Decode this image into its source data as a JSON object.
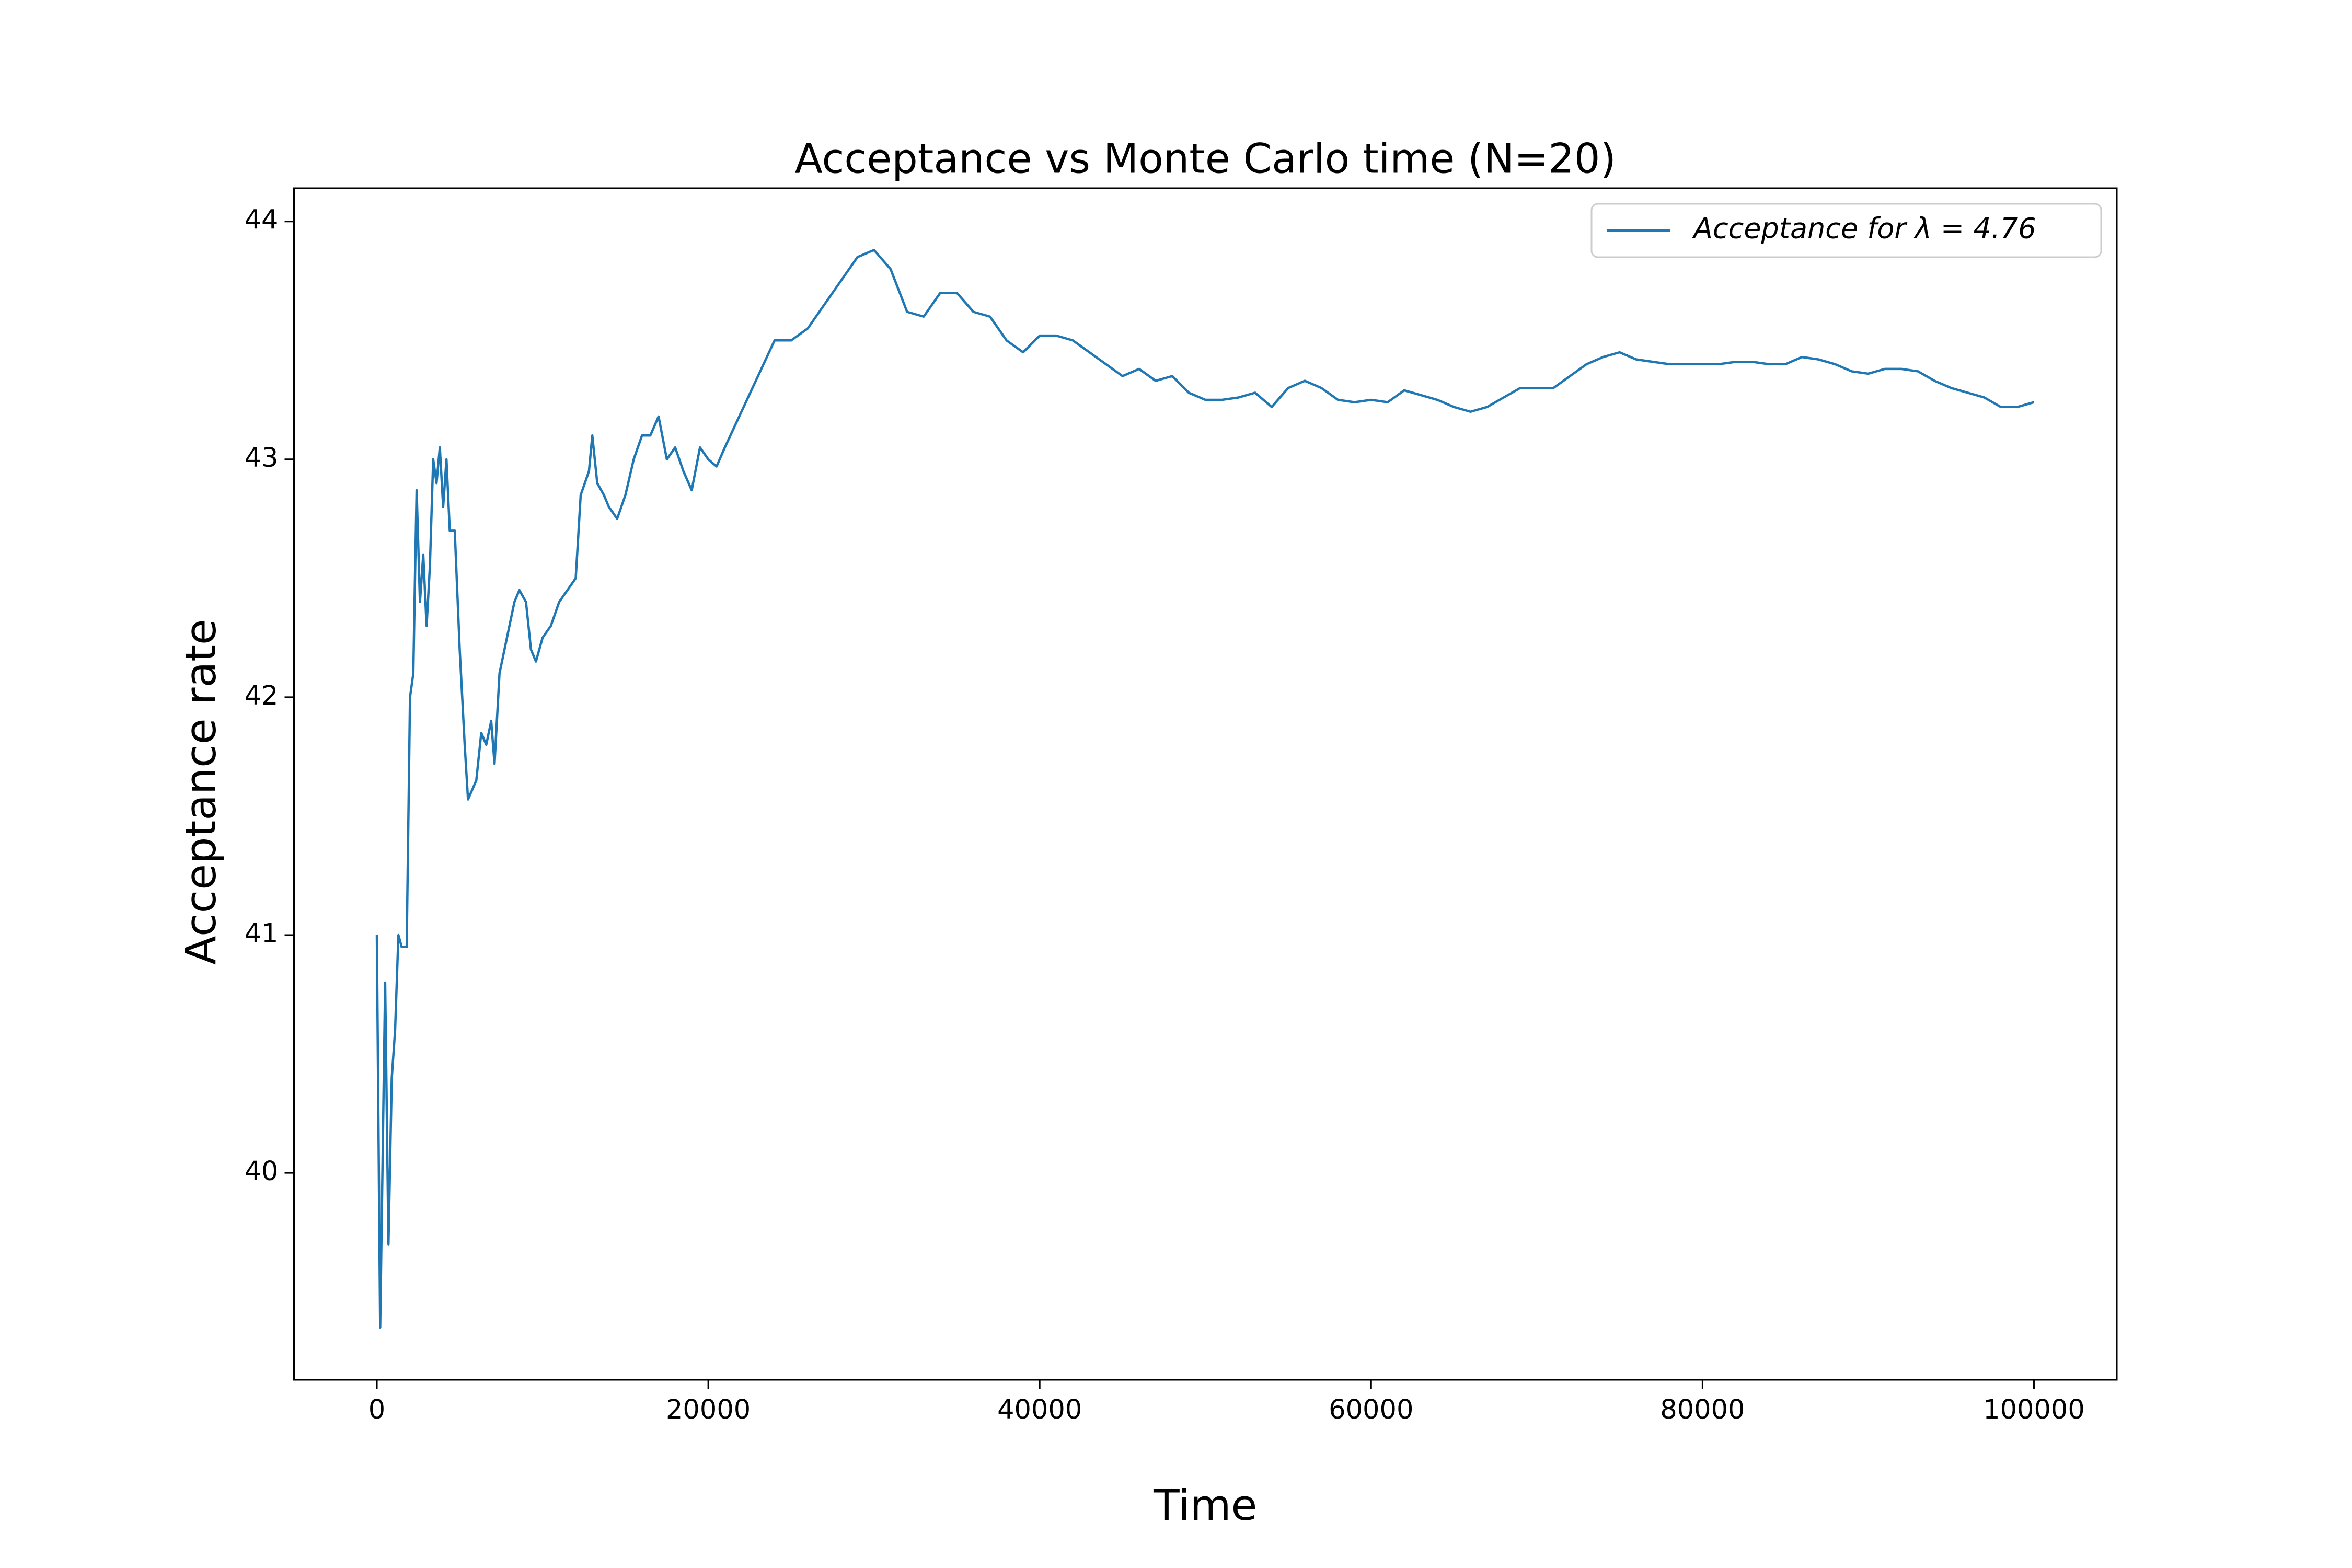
{
  "chart_data": {
    "type": "line",
    "title": "Acceptance vs Monte Carlo time (N=20)",
    "xlabel": "Time",
    "ylabel": "Acceptance rate",
    "xlim": [
      -5000,
      105000
    ],
    "ylim": [
      39.13,
      44.14
    ],
    "xticks": [
      0,
      20000,
      40000,
      60000,
      80000,
      100000
    ],
    "yticks": [
      40,
      41,
      42,
      43,
      44
    ],
    "legend_position": "upper right",
    "series": [
      {
        "name": "Acceptance for λ = 4.76",
        "color": "#1f77b4",
        "x": [
          0,
          200,
          500,
          700,
          900,
          1100,
          1300,
          1500,
          1800,
          2000,
          2200,
          2300,
          2400,
          2600,
          2800,
          3000,
          3200,
          3400,
          3600,
          3800,
          4000,
          4200,
          4400,
          4700,
          5000,
          5300,
          5500,
          6000,
          6300,
          6600,
          6900,
          7100,
          7400,
          7700,
          8000,
          8300,
          8600,
          9000,
          9300,
          9600,
          10000,
          10500,
          11000,
          11500,
          12000,
          12300,
          12800,
          13000,
          13300,
          13700,
          14000,
          14500,
          15000,
          15500,
          16000,
          16500,
          17000,
          17500,
          18000,
          18500,
          19000,
          19500,
          20000,
          20500,
          21000,
          22000,
          23000,
          24000,
          25000,
          26000,
          27000,
          28000,
          29000,
          30000,
          31000,
          32000,
          33000,
          34000,
          35000,
          36000,
          37000,
          38000,
          39000,
          40000,
          41000,
          42000,
          43000,
          44000,
          45000,
          46000,
          47000,
          48000,
          49000,
          50000,
          51000,
          52000,
          53000,
          54000,
          55000,
          56000,
          57000,
          58000,
          59000,
          60000,
          61000,
          62000,
          63000,
          64000,
          65000,
          66000,
          67000,
          68000,
          69000,
          70000,
          71000,
          72000,
          73000,
          74000,
          75000,
          76000,
          77000,
          78000,
          79000,
          80000,
          81000,
          82000,
          83000,
          84000,
          85000,
          86000,
          87000,
          88000,
          89000,
          90000,
          91000,
          92000,
          93000,
          94000,
          95000,
          96000,
          97000,
          98000,
          99000,
          100000
        ],
        "values": [
          41.0,
          39.35,
          40.8,
          39.7,
          40.4,
          40.6,
          41.0,
          40.95,
          40.95,
          42.0,
          42.1,
          42.5,
          42.87,
          42.4,
          42.6,
          42.3,
          42.55,
          43.0,
          42.9,
          43.05,
          42.8,
          43.0,
          42.7,
          42.7,
          42.2,
          41.8,
          41.57,
          41.65,
          41.85,
          41.8,
          41.9,
          41.72,
          42.1,
          42.2,
          42.3,
          42.4,
          42.45,
          42.4,
          42.2,
          42.15,
          42.25,
          42.3,
          42.4,
          42.45,
          42.5,
          42.85,
          42.95,
          43.1,
          42.9,
          42.85,
          42.8,
          42.75,
          42.85,
          43.0,
          43.1,
          43.1,
          43.18,
          43.0,
          43.05,
          42.95,
          42.87,
          43.05,
          43.0,
          42.97,
          43.05,
          43.2,
          43.35,
          43.5,
          43.5,
          43.55,
          43.65,
          43.75,
          43.85,
          43.88,
          43.8,
          43.62,
          43.6,
          43.7,
          43.7,
          43.62,
          43.6,
          43.5,
          43.45,
          43.52,
          43.52,
          43.5,
          43.45,
          43.4,
          43.35,
          43.38,
          43.33,
          43.35,
          43.28,
          43.25,
          43.25,
          43.26,
          43.28,
          43.22,
          43.3,
          43.33,
          43.3,
          43.25,
          43.24,
          43.25,
          43.24,
          43.29,
          43.27,
          43.25,
          43.22,
          43.2,
          43.22,
          43.26,
          43.3,
          43.3,
          43.3,
          43.35,
          43.4,
          43.43,
          43.45,
          43.42,
          43.41,
          43.4,
          43.4,
          43.4,
          43.4,
          43.41,
          43.41,
          43.4,
          43.4,
          43.43,
          43.42,
          43.4,
          43.37,
          43.36,
          43.38,
          43.38,
          43.37,
          43.33,
          43.3,
          43.28,
          43.26,
          43.22,
          43.22,
          43.24
        ]
      }
    ]
  }
}
